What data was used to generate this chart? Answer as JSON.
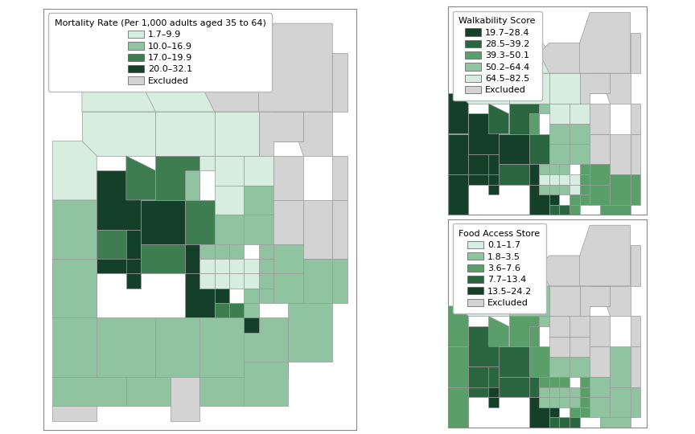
{
  "figure_size": [
    8.64,
    5.4
  ],
  "dpi": 100,
  "background_color": "#ffffff",
  "border_color": "#aaaaaa",
  "mortality_title": "Mortality Rate (Per 1,000 adults aged 35 to 64)",
  "mortality_labels": [
    "1.7–9.9",
    "10.0–16.9",
    "17.0–19.9",
    "20.0–32.1",
    "Excluded"
  ],
  "mortality_colors": [
    "#d6ede0",
    "#90c4a0",
    "#3d7d50",
    "#14402a",
    "#d3d3d3"
  ],
  "walkability_title": "Walkability Score",
  "walkability_labels": [
    "19.7–28.4",
    "28.5–39.2",
    "39.3–50.1",
    "50.2–64.4",
    "64.5–82.5",
    "Excluded"
  ],
  "walkability_colors": [
    "#14402a",
    "#2a6640",
    "#5a9e6a",
    "#90c4a0",
    "#d6ede0",
    "#d3d3d3"
  ],
  "food_title": "Food Access Store",
  "food_labels": [
    "0.1–1.7",
    "1.8–3.5",
    "3.6–7.6",
    "7.7–13.4",
    "13.5–24.2",
    "Excluded"
  ],
  "food_colors": [
    "#d6ede0",
    "#90c4a0",
    "#5a9e6a",
    "#2a6640",
    "#14402a",
    "#d3d3d3"
  ],
  "legend_fontsize": 8.0,
  "title_fontsize": 8.0
}
